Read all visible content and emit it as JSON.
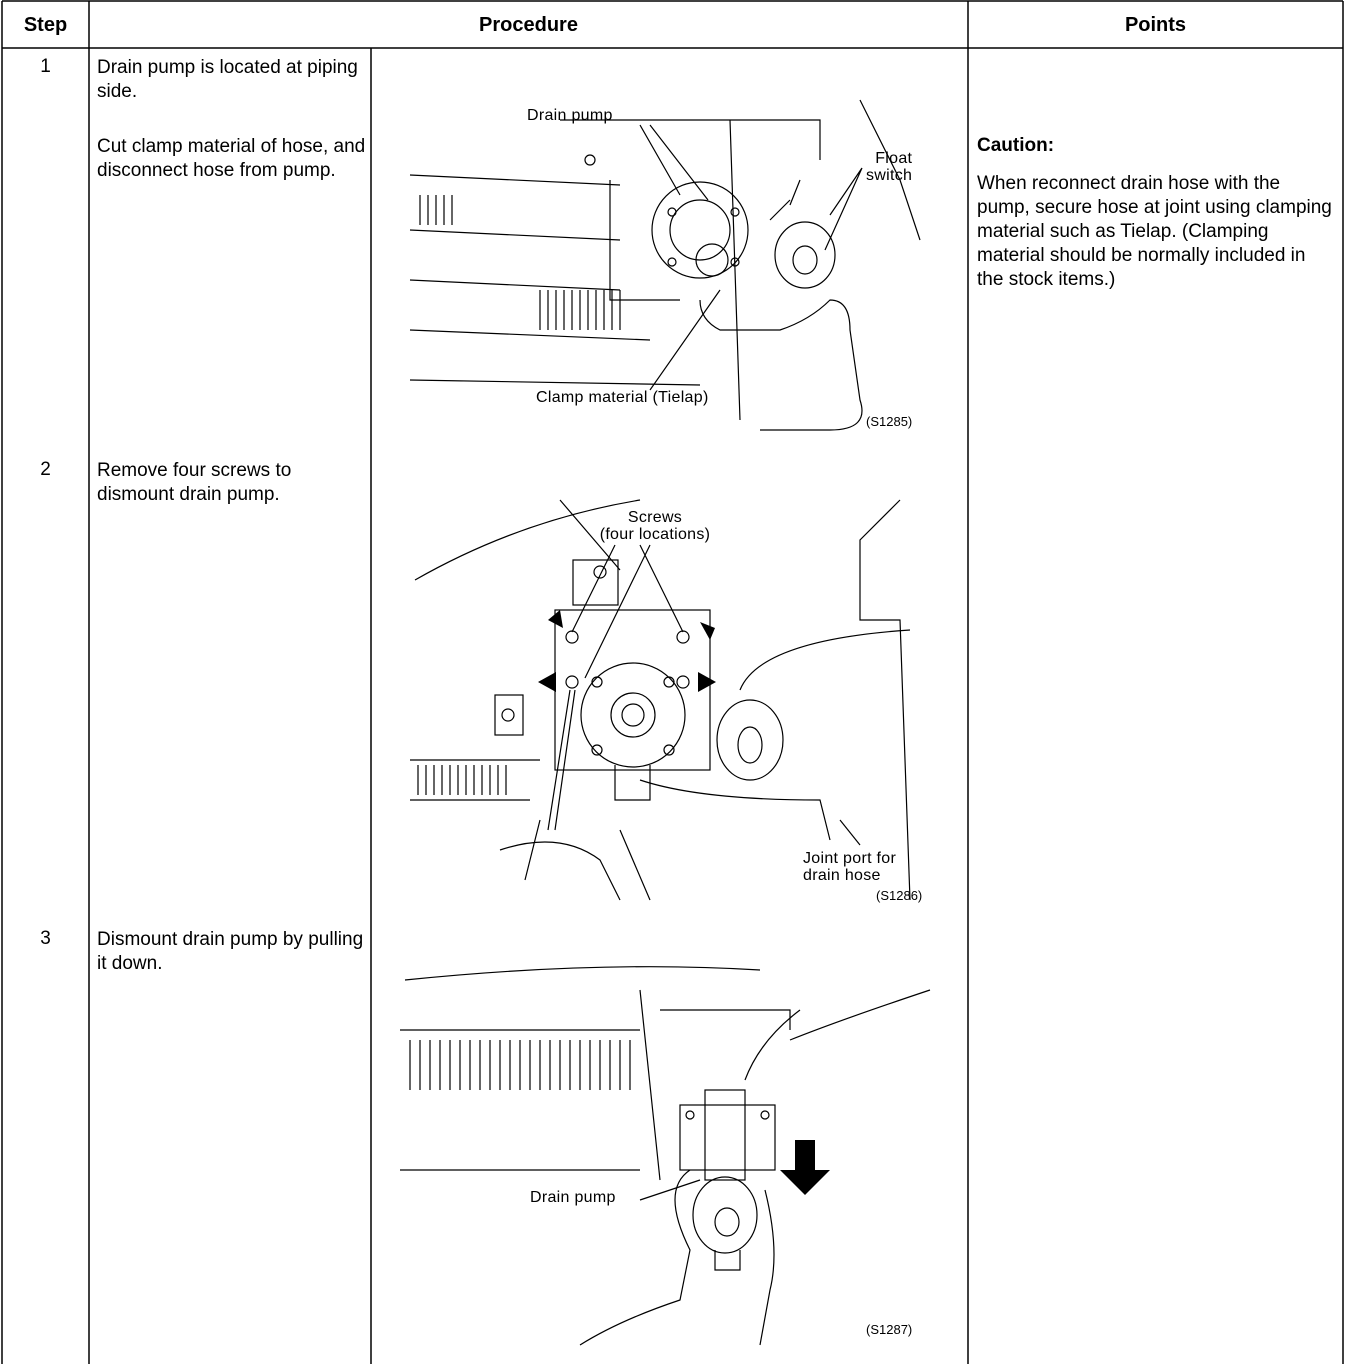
{
  "table": {
    "headers": [
      "Step",
      "Procedure",
      "Points"
    ],
    "rows": [
      {
        "step": "1",
        "procedure": [
          "Drain pump is located at piping side.",
          "Cut clamp material of hose, and disconnect hose from pump."
        ],
        "figure": {
          "labels": [
            "Drain pump",
            "Float\nswitch",
            "Clamp material (Tielap)"
          ],
          "id": "(S1285)"
        },
        "points": {
          "heading": "Caution:",
          "text": "When reconnect drain hose with the pump, secure hose at joint using clamping material such as Tielap. (Clamping material should be normally included in the stock items.)"
        }
      },
      {
        "step": "2",
        "procedure": [
          "Remove four screws to dismount drain pump."
        ],
        "figure": {
          "labels": [
            "Screws\n(four locations)",
            "Joint port for\ndrain hose"
          ],
          "id": "(S1286)"
        }
      },
      {
        "step": "3",
        "procedure": [
          "Dismount drain pump by pulling it down."
        ],
        "figure": {
          "labels": [
            "Drain pump"
          ],
          "id": "(S1287)"
        }
      }
    ]
  }
}
